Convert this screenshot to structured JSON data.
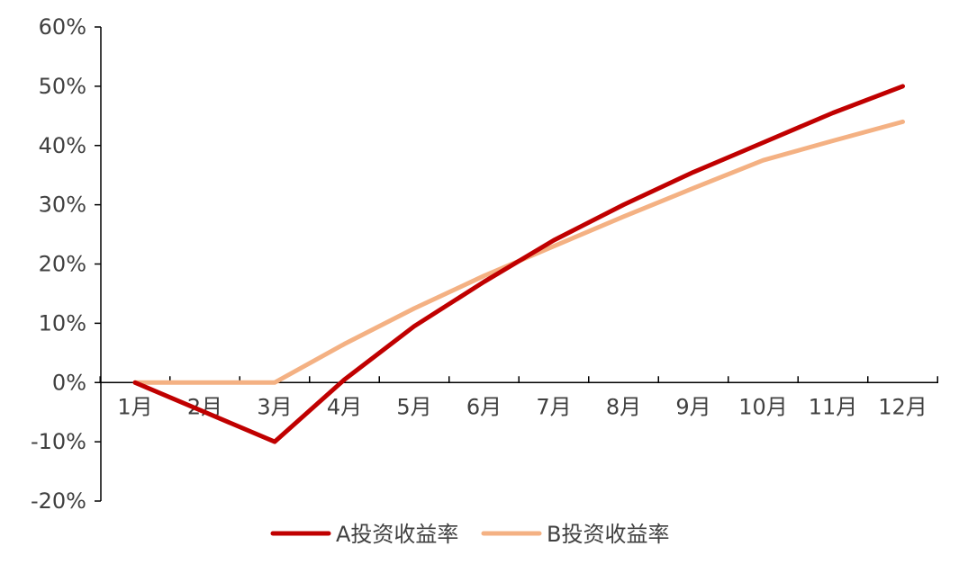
{
  "chart_data": {
    "type": "line",
    "categories": [
      "1月",
      "2月",
      "3月",
      "4月",
      "5月",
      "6月",
      "7月",
      "8月",
      "9月",
      "10月",
      "11月",
      "12月"
    ],
    "series": [
      {
        "name": "A投资收益率",
        "color": "#C00000",
        "values": [
          0,
          -5,
          -10,
          0.5,
          9.5,
          17,
          24,
          30,
          35.5,
          40.5,
          45.5,
          50
        ]
      },
      {
        "name": "B投资收益率",
        "color": "#F4B183",
        "values": [
          0,
          0,
          0,
          6.5,
          12.5,
          18,
          23,
          28,
          32.8,
          37.5,
          40.8,
          44
        ]
      }
    ],
    "y_ticks": [
      "60%",
      "50%",
      "40%",
      "30%",
      "20%",
      "10%",
      "0%",
      "-10%",
      "-20%"
    ],
    "ylim": [
      -20,
      60
    ],
    "grid": false,
    "legend_position": "bottom"
  }
}
